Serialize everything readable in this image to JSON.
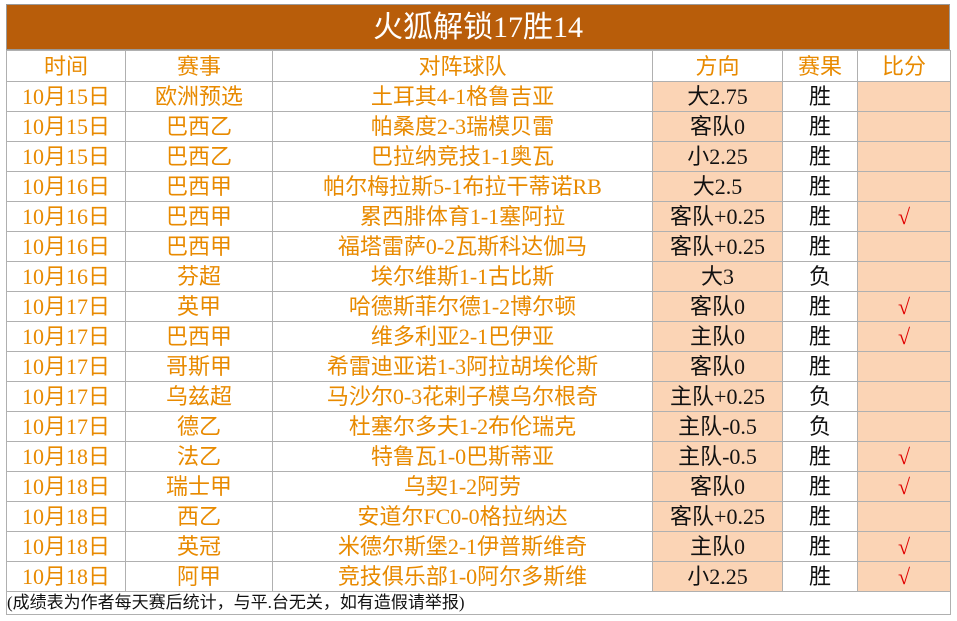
{
  "title": "火狐解锁17胜14",
  "table": {
    "headers": [
      "时间",
      "赛事",
      "对阵球队",
      "方向",
      "赛果",
      "比分"
    ],
    "rows": [
      [
        "10月15日",
        "欧洲预选",
        "土耳其4-1格鲁吉亚",
        "大2.75",
        "胜",
        null
      ],
      [
        "10月15日",
        "巴西乙",
        "帕桑度2-3瑞模贝雷",
        "客队0",
        "胜",
        null
      ],
      [
        "10月15日",
        "巴西乙",
        "巴拉纳竞技1-1奥瓦",
        "小2.25",
        "胜",
        null
      ],
      [
        "10月16日",
        "巴西甲",
        "帕尔梅拉斯5-1布拉干蒂诺RB",
        "大2.5",
        "胜",
        null
      ],
      [
        "10月16日",
        "巴西甲",
        "累西腓体育1-1塞阿拉",
        "客队+0.25",
        "胜",
        "√"
      ],
      [
        "10月16日",
        "巴西甲",
        "福塔雷萨0-2瓦斯科达伽马",
        "客队+0.25",
        "胜",
        null
      ],
      [
        "10月16日",
        "芬超",
        "埃尔维斯1-1古比斯",
        "大3",
        "负",
        null
      ],
      [
        "10月17日",
        "英甲",
        "哈德斯菲尔德1-2博尔顿",
        "客队0",
        "胜",
        "√"
      ],
      [
        "10月17日",
        "巴西甲",
        "维多利亚2-1巴伊亚",
        "主队0",
        "胜",
        "√"
      ],
      [
        "10月17日",
        "哥斯甲",
        "希雷迪亚诺1-3阿拉胡埃伦斯",
        "客队0",
        "胜",
        null
      ],
      [
        "10月17日",
        "乌兹超",
        "马沙尔0-3花剌子模乌尔根奇",
        "主队+0.25",
        "负",
        null
      ],
      [
        "10月17日",
        "德乙",
        "杜塞尔多夫1-2布伦瑞克",
        "主队-0.5",
        "负",
        null
      ],
      [
        "10月18日",
        "法乙",
        "特鲁瓦1-0巴斯蒂亚",
        "主队-0.5",
        "胜",
        "√"
      ],
      [
        "10月18日",
        "瑞士甲",
        "乌契1-2阿劳",
        "客队0",
        "胜",
        "√"
      ],
      [
        "10月18日",
        "西乙",
        "安道尔FC0-0格拉纳达",
        "客队+0.25",
        "胜",
        null
      ],
      [
        "10月18日",
        "英冠",
        "米德尔斯堡2-1伊普斯维奇",
        "主队0",
        "胜",
        "√"
      ],
      [
        "10月18日",
        "阿甲",
        "竞技俱乐部1-0阿尔多斯维",
        "小2.25",
        "胜",
        "√"
      ]
    ],
    "footer": "(成绩表为作者每天赛后统计，与平.台无关，如有造假请举报)"
  }
}
